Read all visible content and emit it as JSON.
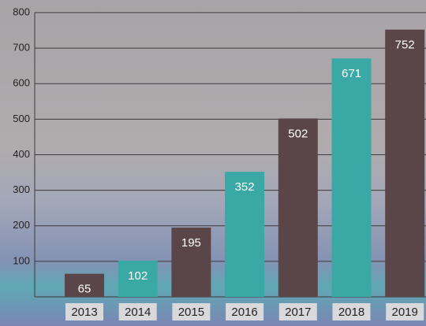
{
  "chart_data": {
    "type": "bar",
    "categories": [
      "2013",
      "2014",
      "2015",
      "2016",
      "2017",
      "2018",
      "2019"
    ],
    "values": [
      65,
      102,
      195,
      352,
      502,
      671,
      752
    ],
    "colors": [
      "#5a4648",
      "#3aa9a5",
      "#5a4648",
      "#3aa9a5",
      "#5a4648",
      "#3aa9a5",
      "#5a4648"
    ],
    "ylim": [
      0,
      800
    ],
    "yticks": [
      100,
      200,
      300,
      400,
      500,
      600,
      700,
      800
    ],
    "grid": true
  }
}
